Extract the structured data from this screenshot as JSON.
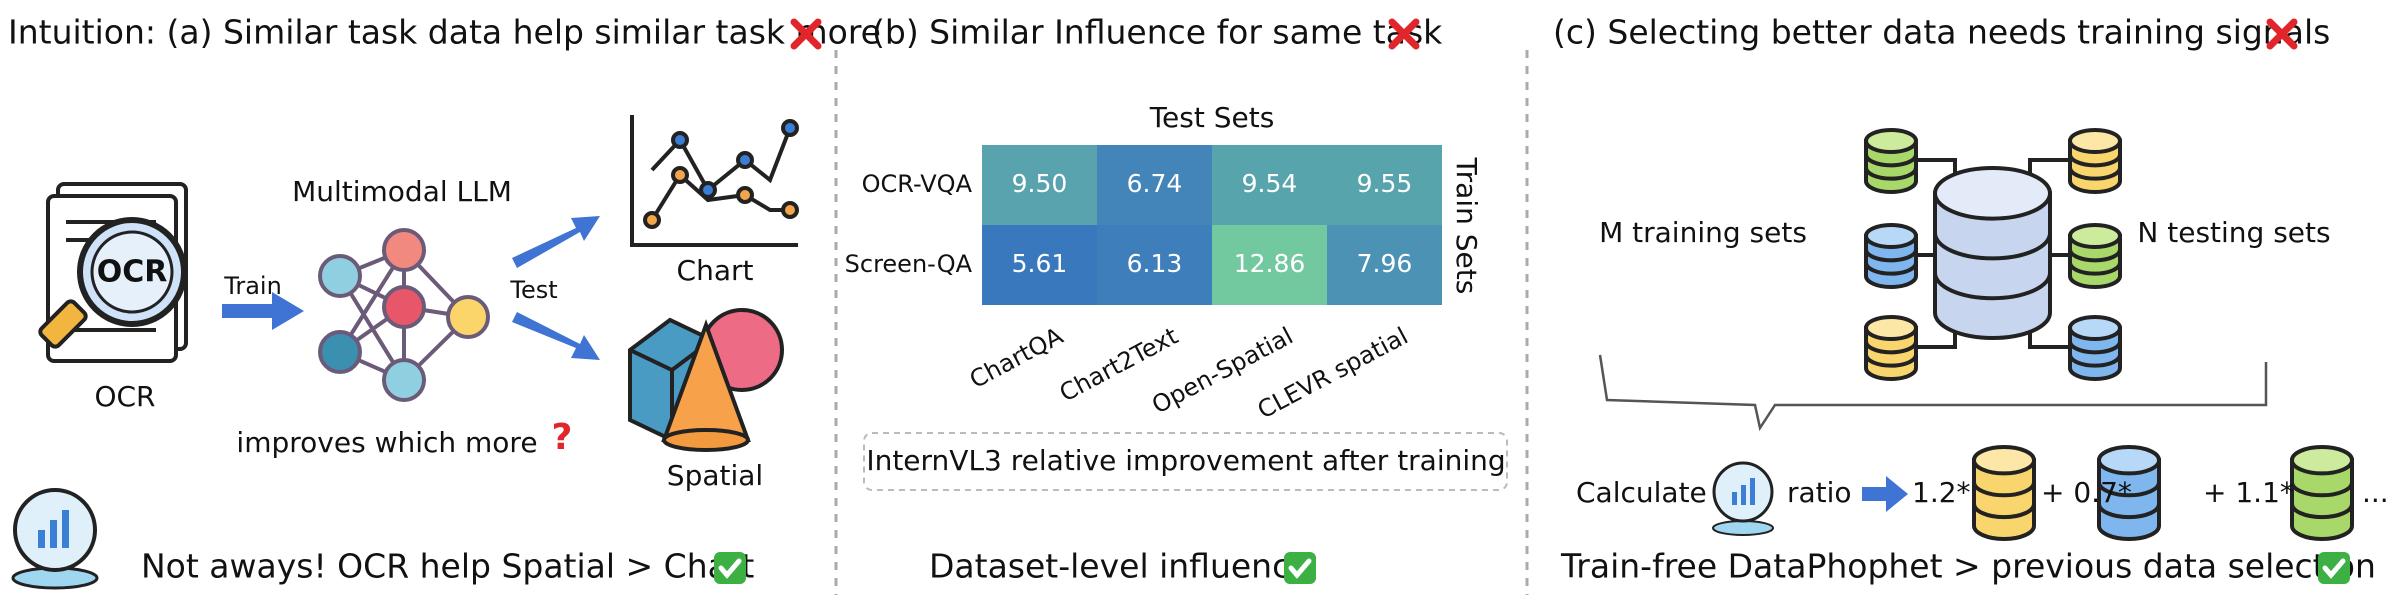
{
  "panel_a": {
    "title": "Intuition: (a) Similar task data help similar task more",
    "ocr_icon_text": "OCR",
    "source_label": "OCR",
    "train_label": "Train",
    "model_label": "Multimodal LLM",
    "test_label": "Test",
    "target_1": "Chart",
    "target_2": "Spatial",
    "question": "improves which more",
    "question_mark": "?",
    "conclusion": "Not aways! OCR help Spatial > Chart"
  },
  "panel_b": {
    "title": "(b) Similar Influence for same task",
    "heatmap": {
      "column_axis_label": "Test Sets",
      "row_axis_label": "Train Sets",
      "rows": [
        "OCR-VQA",
        "Screen-QA"
      ],
      "columns": [
        "ChartQA",
        "Chart2Text",
        "Open-Spatial",
        "CLEVR spatial"
      ],
      "cells": [
        [
          "9.50",
          "6.74",
          "9.54",
          "9.55"
        ],
        [
          "5.61",
          "6.13",
          "12.86",
          "7.96"
        ]
      ]
    },
    "caption": "InternVL3 relative improvement after training",
    "conclusion": "Dataset-level influence"
  },
  "panel_c": {
    "title": "(c) Selecting better data needs training signals",
    "left_label": "M training sets",
    "right_label": "N testing sets",
    "calc_label": "Calculate",
    "ratio_label": "ratio",
    "weights": [
      "1.2*",
      "+ 0.7*",
      "+ 1.1*"
    ],
    "ellipsis": "...",
    "conclusion": "Train-free DataPhophet > previous data selection"
  }
}
